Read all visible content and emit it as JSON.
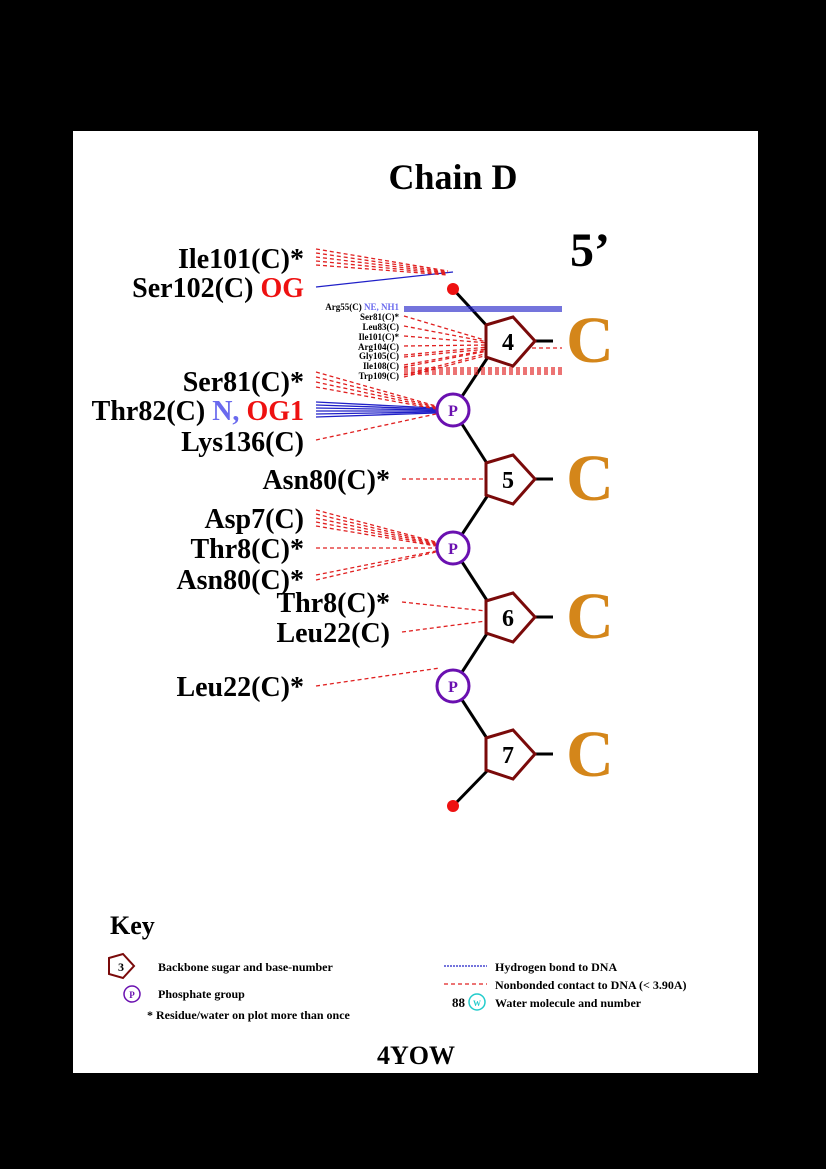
{
  "title": "Chain D",
  "end_label": "5’",
  "pdb_id": "4YOW",
  "colors": {
    "background": "#000000",
    "panel": "#ffffff",
    "hbond": "#2020c8",
    "nonbonded": "#e02020",
    "sugar": "#7a0a0a",
    "phosphate": "#6a10b0",
    "base": "#d4861a",
    "atom_red": "#ee1111",
    "atom_blue": "#6a6aee",
    "water": "#22cccc"
  },
  "nucleotides": [
    {
      "number": "4",
      "base": "C"
    },
    {
      "number": "5",
      "base": "C"
    },
    {
      "number": "6",
      "base": "C"
    },
    {
      "number": "7",
      "base": "C"
    }
  ],
  "phosphate_label": "P",
  "residues": {
    "ile101": "Ile101(C)*",
    "ser102": "Ser102(C)",
    "ser102_atom": "OG",
    "arg55": "Arg55(C)",
    "arg55_atoms": "NE, NH1",
    "ser81_small": "Ser81(C)*",
    "leu83": "Leu83(C)",
    "ile101_small": "Ile101(C)*",
    "arg104": "Arg104(C)",
    "gly105": "Gly105(C)",
    "ile108": "Ile108(C)",
    "trp109": "Trp109(C)",
    "ser81": "Ser81(C)*",
    "thr82": "Thr82(C)",
    "thr82_atom_n": "N,",
    "thr82_atom_og1": "OG1",
    "lys136": "Lys136(C)",
    "asn80_a": "Asn80(C)*",
    "asp7": "Asp7(C)",
    "thr8_a": "Thr8(C)*",
    "asn80_b": "Asn80(C)*",
    "thr8_b": "Thr8(C)*",
    "leu22_a": "Leu22(C)",
    "leu22_b": "Leu22(C)*"
  },
  "key": {
    "heading": "Key",
    "sugar_number": "3",
    "sugar_text": "Backbone sugar and base-number",
    "phosphate_symbol": "P",
    "phosphate_text": "Phosphate group",
    "repeat_text": "* Residue/water on plot more than once",
    "hbond_text": "Hydrogen bond to DNA",
    "nonbonded_text": "Nonbonded contact to DNA (< 3.90A)",
    "water_number": "88",
    "water_symbol": "W",
    "water_text": "Water molecule and number"
  }
}
